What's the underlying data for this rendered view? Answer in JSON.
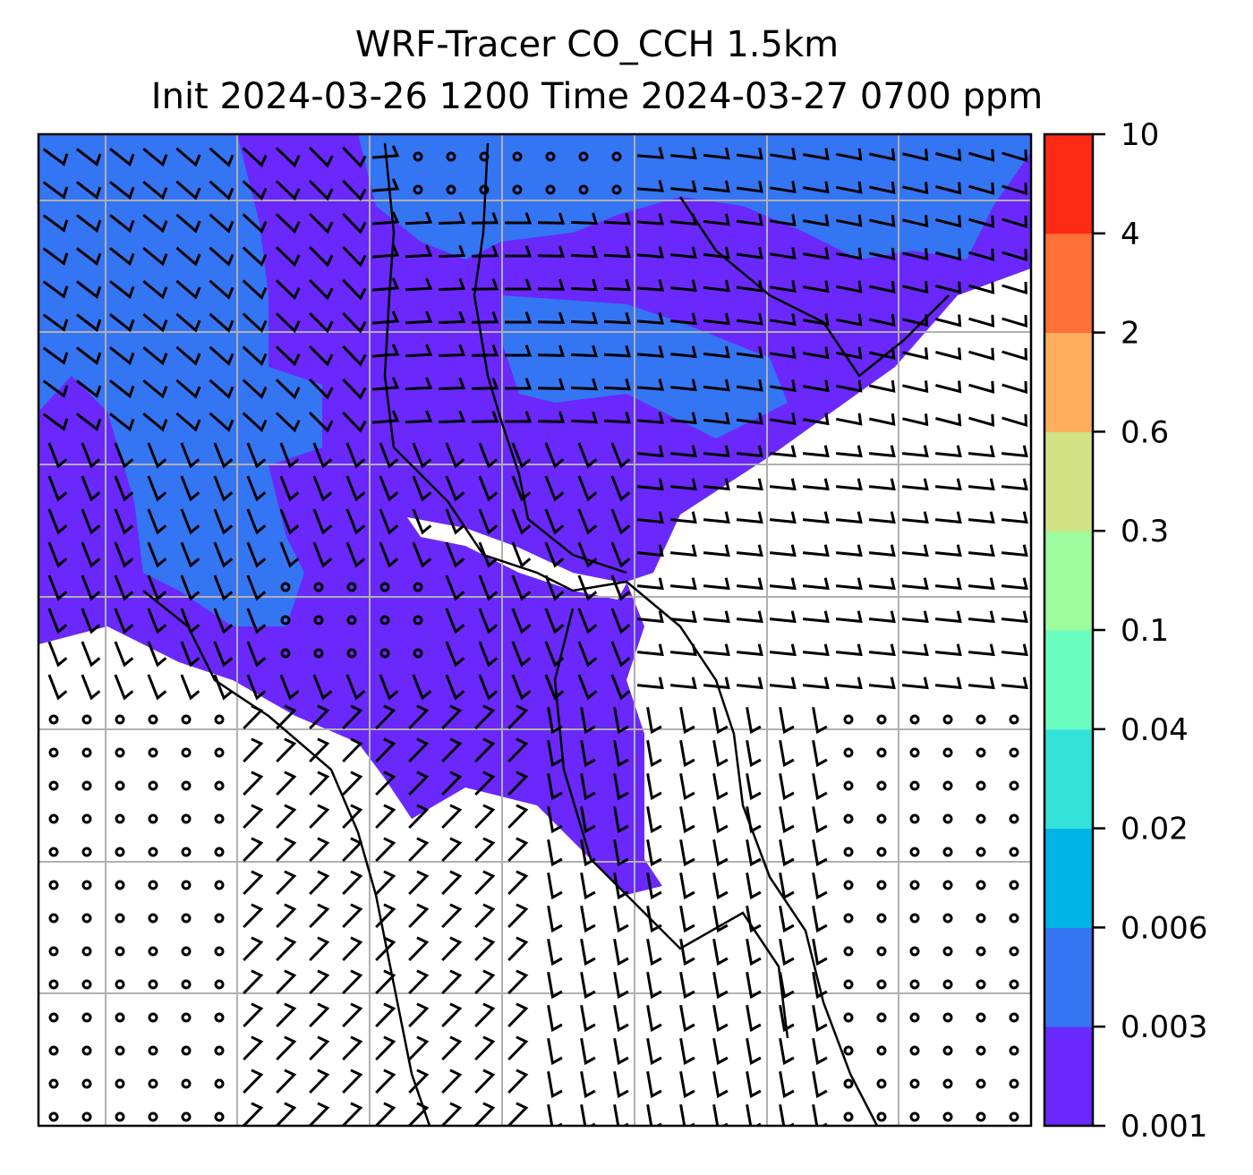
{
  "title": {
    "line1": "WRF-Tracer CO_CCH 1.5km",
    "line2": "Init 2024-03-26 1200 Time 2024-03-27 0700 ppm"
  },
  "colorbar": {
    "levels": [
      "0.001",
      "0.003",
      "0.006",
      "0.02",
      "0.04",
      "0.1",
      "0.3",
      "0.6",
      "2",
      "4",
      "10"
    ],
    "colors": [
      "#6A28FC",
      "#3475F4",
      "#00B4E8",
      "#33E2D8",
      "#6AFDC0",
      "#9CFC9E",
      "#D2E285",
      "#FFAE5E",
      "#FF7138",
      "#FF2A14"
    ]
  },
  "map": {
    "low_color": "#6A28FC",
    "mid_color": "#3475F4",
    "grid_color": "#b0b0b0"
  }
}
